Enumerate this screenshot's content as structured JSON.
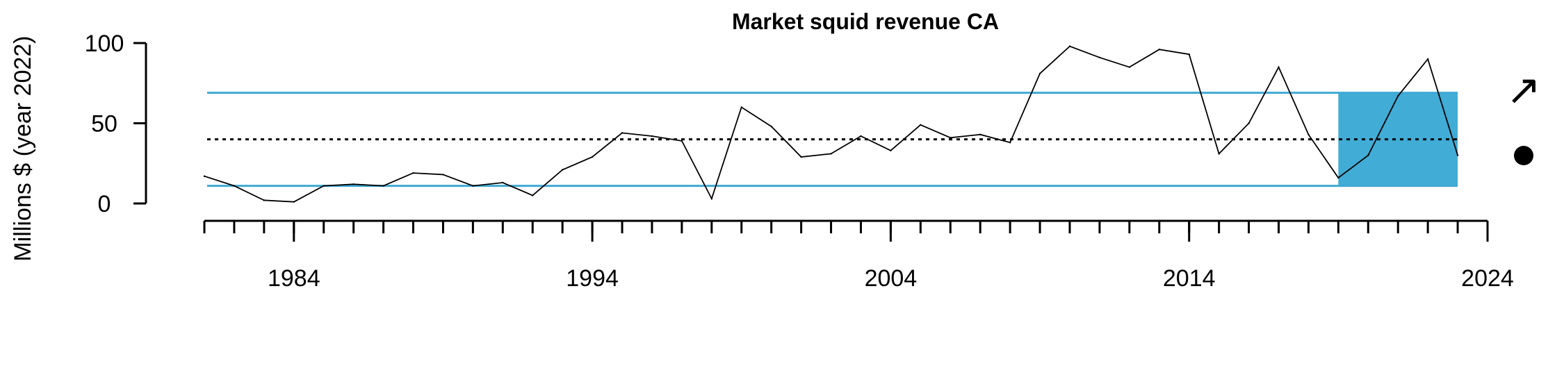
{
  "chart_data": {
    "type": "line",
    "title": "Market squid revenue CA",
    "xlabel": "",
    "ylabel": "Millions $ (year 2022)",
    "xlim": [
      1981,
      2024
    ],
    "ylim": [
      0,
      100
    ],
    "y_ticks": [
      0,
      50,
      100
    ],
    "x_major_ticks": [
      1984,
      1994,
      2004,
      2014,
      2024
    ],
    "x_minor_ticks": [
      1981,
      1982,
      1983,
      1984,
      1985,
      1986,
      1987,
      1988,
      1989,
      1990,
      1991,
      1992,
      1993,
      1994,
      1995,
      1996,
      1997,
      1998,
      1999,
      2000,
      2001,
      2002,
      2003,
      2004,
      2005,
      2006,
      2007,
      2008,
      2009,
      2010,
      2011,
      2012,
      2013,
      2014,
      2015,
      2016,
      2017,
      2018,
      2019,
      2020,
      2021,
      2022,
      2023,
      2024
    ],
    "series": [
      {
        "x": [
          1981,
          1982,
          1983,
          1984,
          1985,
          1986,
          1987,
          1988,
          1989,
          1990,
          1991,
          1992,
          1993,
          1994,
          1995,
          1996,
          1997,
          1998,
          1999,
          2000,
          2001,
          2002,
          2003,
          2004,
          2005,
          2006,
          2007,
          2008,
          2009,
          2010,
          2011,
          2012,
          2013,
          2014,
          2015,
          2016,
          2017,
          2018,
          2019,
          2020,
          2021,
          2022,
          2023
        ],
        "values": [
          17,
          11,
          2,
          1,
          11,
          12,
          11,
          19,
          18,
          11,
          13,
          5,
          21,
          29,
          44,
          42,
          39,
          3,
          60,
          48,
          29,
          31,
          42,
          33,
          49,
          41,
          43,
          38,
          81,
          98,
          91,
          85,
          96,
          93,
          31,
          50,
          85,
          43,
          16,
          30,
          67,
          90,
          30
        ]
      }
    ],
    "reference_lines": {
      "mean": 40,
      "upper": 69,
      "lower": 11,
      "mean_style": "dotted",
      "band_style": "solid",
      "band_color": "#3fa9d4"
    },
    "highlight_region": {
      "x_start": 2019,
      "x_end": 2023,
      "y_start": 11,
      "y_end": 69,
      "color": "#41acd6"
    },
    "indicators": {
      "trend_icon": "arrow-up-right-icon",
      "trend_symbol": "↗",
      "mean_icon": "filled-circle-icon"
    },
    "grid": false,
    "legend": "none"
  }
}
